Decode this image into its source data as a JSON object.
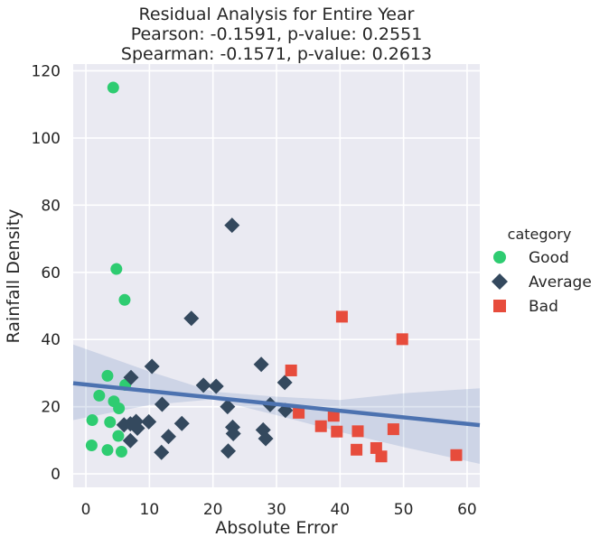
{
  "chart_data": {
    "type": "scatter",
    "title_lines": [
      "Residual Analysis for Entire Year",
      "Pearson: -0.1591, p-value: 0.2551",
      "Spearman: -0.1571, p-value: 0.2613"
    ],
    "xlabel": "Absolute Error",
    "ylabel": "Rainfall Density",
    "xlim": [
      -2,
      62
    ],
    "ylim": [
      -4,
      122
    ],
    "xticks": [
      0,
      10,
      20,
      30,
      40,
      50,
      60
    ],
    "yticks": [
      0,
      20,
      40,
      60,
      80,
      100,
      120
    ],
    "grid": true,
    "legend": {
      "title": "category",
      "placement": "right"
    },
    "series": [
      {
        "name": "Good",
        "marker": "circle",
        "color": "#2ecc71",
        "points": [
          [
            4.3,
            115
          ],
          [
            4.8,
            61
          ],
          [
            6.1,
            51.8
          ],
          [
            3.4,
            29.2
          ],
          [
            6.2,
            26.5
          ],
          [
            2.1,
            23.3
          ],
          [
            4.4,
            21.6
          ],
          [
            5.2,
            19.5
          ],
          [
            1,
            16
          ],
          [
            3.8,
            15.4
          ],
          [
            5.1,
            11.3
          ],
          [
            0.9,
            8.5
          ],
          [
            3.4,
            7.1
          ],
          [
            5.6,
            6.6
          ]
        ]
      },
      {
        "name": "Average",
        "marker": "diamond",
        "color": "#34495e",
        "points": [
          [
            23,
            74
          ],
          [
            16.6,
            46.3
          ],
          [
            27.6,
            32.6
          ],
          [
            10.4,
            32
          ],
          [
            7.1,
            28.7
          ],
          [
            31.3,
            27.2
          ],
          [
            18.5,
            26.4
          ],
          [
            20.5,
            26.1
          ],
          [
            12,
            20.7
          ],
          [
            29,
            20.6
          ],
          [
            22.3,
            20
          ],
          [
            31.4,
            18.9
          ],
          [
            7.9,
            15.6
          ],
          [
            9.9,
            15.5
          ],
          [
            6,
            14.6
          ],
          [
            15.1,
            15
          ],
          [
            7,
            14.9
          ],
          [
            23.1,
            13.9
          ],
          [
            8.1,
            13.6
          ],
          [
            27.9,
            13.1
          ],
          [
            13,
            11.1
          ],
          [
            23.2,
            12
          ],
          [
            7,
            9.9
          ],
          [
            28.3,
            10.5
          ],
          [
            11.9,
            6.4
          ],
          [
            22.4,
            6.8
          ]
        ]
      },
      {
        "name": "Bad",
        "marker": "square",
        "color": "#e74c3c",
        "points": [
          [
            40.3,
            46.8
          ],
          [
            49.8,
            40.1
          ],
          [
            32.3,
            30.8
          ],
          [
            33.5,
            18.2
          ],
          [
            39,
            17.3
          ],
          [
            37,
            14.2
          ],
          [
            48.4,
            13.3
          ],
          [
            39.5,
            12.6
          ],
          [
            42.8,
            12.7
          ],
          [
            42.6,
            7.2
          ],
          [
            45.7,
            7.7
          ],
          [
            46.5,
            5.2
          ],
          [
            58.3,
            5.6
          ]
        ]
      }
    ],
    "regression": {
      "color": "#4c72b0",
      "line": [
        [
          -2,
          27
        ],
        [
          62,
          14.5
        ]
      ],
      "ci_lower": [
        [
          -2,
          16
        ],
        [
          10,
          20.5
        ],
        [
          20,
          22.2
        ],
        [
          30,
          17.5
        ],
        [
          40,
          12.5
        ],
        [
          50,
          8
        ],
        [
          62,
          3
        ]
      ],
      "ci_upper": [
        [
          -2,
          38.5
        ],
        [
          10,
          30.5
        ],
        [
          20,
          24.5
        ],
        [
          30,
          23
        ],
        [
          40,
          22
        ],
        [
          50,
          24
        ],
        [
          62,
          25.5
        ]
      ]
    }
  }
}
